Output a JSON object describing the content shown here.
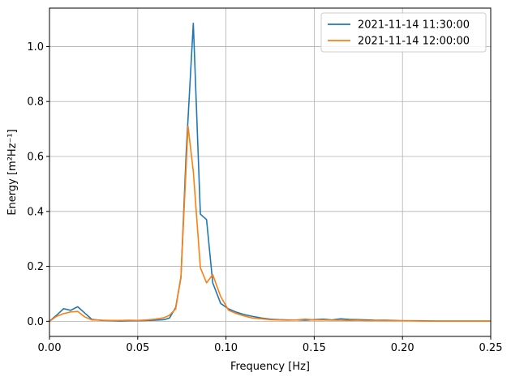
{
  "chart_data": {
    "type": "line",
    "title": "",
    "xlabel": "Frequency [Hz]",
    "ylabel": "Energy [m²Hz⁻¹]",
    "xlim": [
      0.0,
      0.25
    ],
    "ylim": [
      -0.055,
      1.14
    ],
    "xticks": [
      0.0,
      0.05,
      0.1,
      0.15,
      0.2,
      0.25
    ],
    "xtick_labels": [
      "0.00",
      "0.05",
      "0.10",
      "0.15",
      "0.20",
      "0.25"
    ],
    "yticks": [
      0.0,
      0.2,
      0.4,
      0.6,
      0.8,
      1.0
    ],
    "ytick_labels": [
      "0.0",
      "0.2",
      "0.4",
      "0.6",
      "0.8",
      "1.0"
    ],
    "grid": true,
    "legend_position": "top-right",
    "series": [
      {
        "name": "2021-11-14 11:30:00",
        "color": "#1f77b4",
        "x": [
          0.0,
          0.004,
          0.008,
          0.012,
          0.016,
          0.02,
          0.024,
          0.03,
          0.035,
          0.04,
          0.045,
          0.05,
          0.055,
          0.06,
          0.065,
          0.068,
          0.0715,
          0.0745,
          0.0775,
          0.0815,
          0.0855,
          0.089,
          0.0925,
          0.097,
          0.1015,
          0.106,
          0.11,
          0.115,
          0.12,
          0.125,
          0.13,
          0.135,
          0.14,
          0.145,
          0.15,
          0.155,
          0.16,
          0.165,
          0.17,
          0.175,
          0.18,
          0.185,
          0.19,
          0.195,
          0.2,
          0.21,
          0.22,
          0.23,
          0.24,
          0.25
        ],
        "y": [
          0.0,
          0.022,
          0.046,
          0.04,
          0.053,
          0.03,
          0.007,
          0.003,
          0.002,
          0.001,
          0.002,
          0.002,
          0.003,
          0.004,
          0.006,
          0.012,
          0.05,
          0.16,
          0.62,
          1.085,
          0.39,
          0.37,
          0.14,
          0.065,
          0.045,
          0.033,
          0.025,
          0.018,
          0.012,
          0.008,
          0.006,
          0.005,
          0.005,
          0.004,
          0.006,
          0.008,
          0.005,
          0.009,
          0.007,
          0.006,
          0.005,
          0.004,
          0.004,
          0.003,
          0.002,
          0.002,
          0.001,
          0.001,
          0.001,
          0.001
        ]
      },
      {
        "name": "2021-11-14 12:00:00",
        "color": "#ff7f0e",
        "x": [
          0.0,
          0.004,
          0.008,
          0.012,
          0.016,
          0.02,
          0.024,
          0.03,
          0.035,
          0.04,
          0.045,
          0.05,
          0.055,
          0.06,
          0.065,
          0.068,
          0.0715,
          0.0745,
          0.0785,
          0.0815,
          0.0855,
          0.089,
          0.0925,
          0.097,
          0.1015,
          0.106,
          0.11,
          0.115,
          0.12,
          0.125,
          0.13,
          0.135,
          0.14,
          0.145,
          0.15,
          0.155,
          0.16,
          0.165,
          0.17,
          0.175,
          0.18,
          0.185,
          0.19,
          0.195,
          0.2,
          0.21,
          0.22,
          0.23,
          0.24,
          0.25
        ],
        "y": [
          0.0,
          0.018,
          0.028,
          0.034,
          0.036,
          0.016,
          0.005,
          0.004,
          0.003,
          0.003,
          0.004,
          0.003,
          0.005,
          0.008,
          0.013,
          0.022,
          0.045,
          0.165,
          0.71,
          0.545,
          0.195,
          0.14,
          0.17,
          0.09,
          0.04,
          0.028,
          0.02,
          0.012,
          0.009,
          0.006,
          0.005,
          0.004,
          0.005,
          0.008,
          0.005,
          0.005,
          0.004,
          0.004,
          0.003,
          0.004,
          0.002,
          0.003,
          0.002,
          0.002,
          0.002,
          0.001,
          0.001,
          0.001,
          0.001,
          0.001
        ]
      }
    ]
  }
}
